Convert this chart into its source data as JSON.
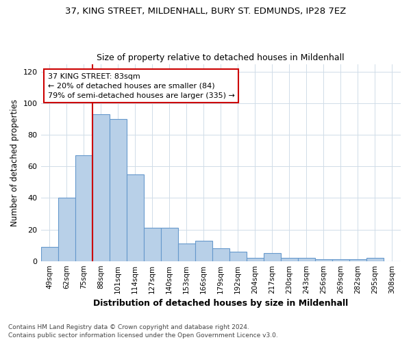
{
  "title": "37, KING STREET, MILDENHALL, BURY ST. EDMUNDS, IP28 7EZ",
  "subtitle": "Size of property relative to detached houses in Mildenhall",
  "xlabel": "Distribution of detached houses by size in Mildenhall",
  "ylabel": "Number of detached properties",
  "categories": [
    "49sqm",
    "62sqm",
    "75sqm",
    "88sqm",
    "101sqm",
    "114sqm",
    "127sqm",
    "140sqm",
    "153sqm",
    "166sqm",
    "179sqm",
    "192sqm",
    "204sqm",
    "217sqm",
    "230sqm",
    "243sqm",
    "256sqm",
    "269sqm",
    "282sqm",
    "295sqm",
    "308sqm"
  ],
  "values": [
    9,
    40,
    67,
    93,
    90,
    55,
    21,
    21,
    11,
    13,
    8,
    6,
    2,
    5,
    2,
    2,
    1,
    1,
    1,
    2,
    0
  ],
  "bar_color": "#b8d0e8",
  "bar_edge_color": "#6699cc",
  "vline_color": "#cc0000",
  "vline_x": 3,
  "annotation_text": "37 KING STREET: 83sqm\n← 20% of detached houses are smaller (84)\n79% of semi-detached houses are larger (335) →",
  "annotation_box_color": "#cc0000",
  "ylim": [
    0,
    125
  ],
  "yticks": [
    0,
    20,
    40,
    60,
    80,
    100,
    120
  ],
  "background_color": "#ffffff",
  "grid_color": "#d0dce8",
  "footer": "Contains HM Land Registry data © Crown copyright and database right 2024.\nContains public sector information licensed under the Open Government Licence v3.0."
}
